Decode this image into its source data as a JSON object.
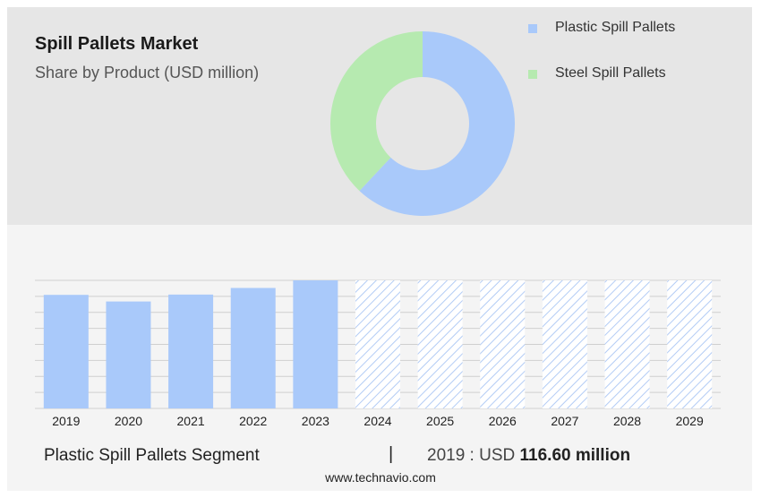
{
  "chart_data": [
    {
      "type": "pie",
      "title": "Spill Pallets Market",
      "subtitle": "Share by Product (USD million)",
      "legend_position": "right",
      "slices": [
        {
          "label": "Plastic Spill Pallets",
          "value": 62,
          "color": "#a9c9fa"
        },
        {
          "label": "Steel Spill Pallets",
          "value": 38,
          "color": "#b6eab0"
        }
      ]
    },
    {
      "type": "bar",
      "categories": [
        "2019",
        "2020",
        "2021",
        "2022",
        "2023",
        "2024",
        "2025",
        "2026",
        "2027",
        "2028",
        "2029"
      ],
      "values": [
        116.6,
        109.8,
        116.9,
        123.7,
        131.5,
        null,
        null,
        null,
        null,
        null,
        null
      ],
      "forecast_hatched": true,
      "bar_color": "#a9c9fa",
      "grid": true,
      "ylim": [
        0,
        131.5
      ]
    }
  ],
  "footer": {
    "segment_label": "Plastic Spill Pallets Segment",
    "separator": "|",
    "value_prefix": "2019 : USD",
    "value_bold": "116.60 million"
  },
  "source": "www.technavio.com"
}
